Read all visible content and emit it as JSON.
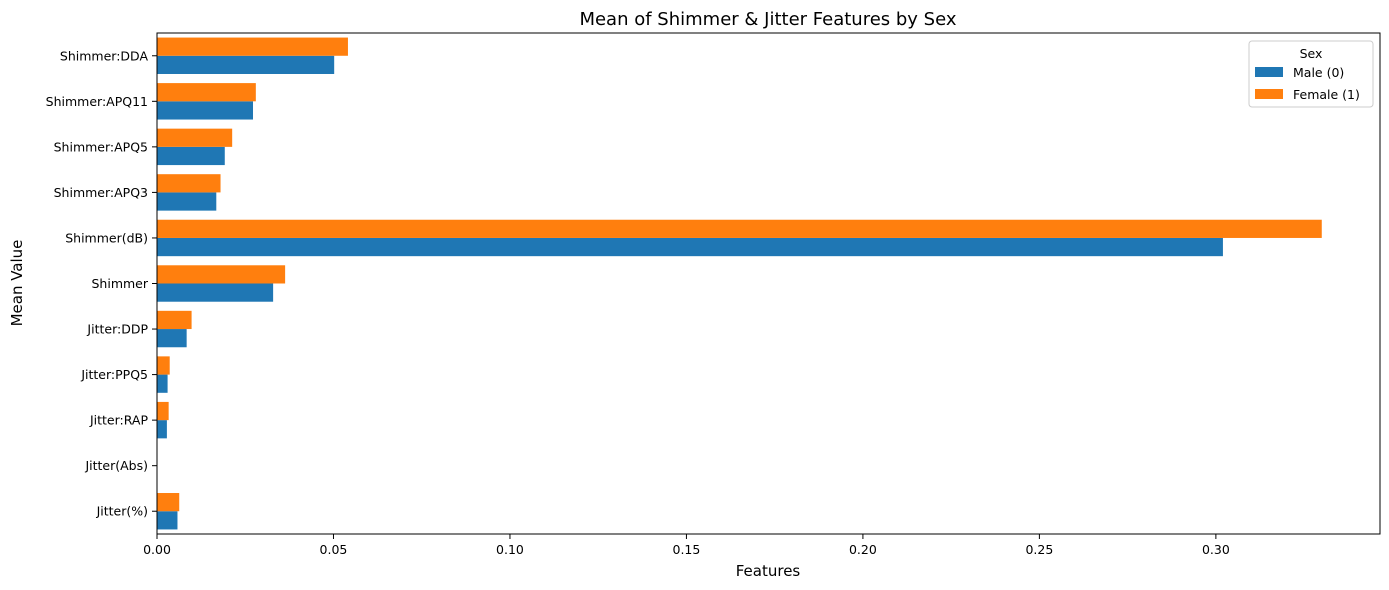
{
  "chart_data": {
    "type": "bar",
    "orientation": "horizontal",
    "title": "Mean of Shimmer & Jitter Features by Sex",
    "xlabel": "Features",
    "ylabel": "Mean Value",
    "categories": [
      "Jitter(%)",
      "Jitter(Abs)",
      "Jitter:RAP",
      "Jitter:PPQ5",
      "Jitter:DDP",
      "Shimmer",
      "Shimmer(dB)",
      "Shimmer:APQ3",
      "Shimmer:APQ5",
      "Shimmer:APQ11",
      "Shimmer:DDA"
    ],
    "series": [
      {
        "name": "Male (0)",
        "color": "#1f77b4",
        "values": [
          0.0058,
          4e-05,
          0.0028,
          0.003,
          0.0084,
          0.0329,
          0.302,
          0.0168,
          0.0192,
          0.0272,
          0.0502
        ]
      },
      {
        "name": "Female (1)",
        "color": "#ff7f0e",
        "values": [
          0.0063,
          5e-05,
          0.0033,
          0.0036,
          0.0098,
          0.0363,
          0.33,
          0.018,
          0.0213,
          0.028,
          0.0541
        ]
      }
    ],
    "xlim": [
      0,
      0.3465
    ],
    "xticks": [
      "0.00",
      "0.05",
      "0.10",
      "0.15",
      "0.20",
      "0.25",
      "0.30"
    ],
    "legend": {
      "title": "Sex",
      "position": "top-right"
    },
    "grid": false
  }
}
